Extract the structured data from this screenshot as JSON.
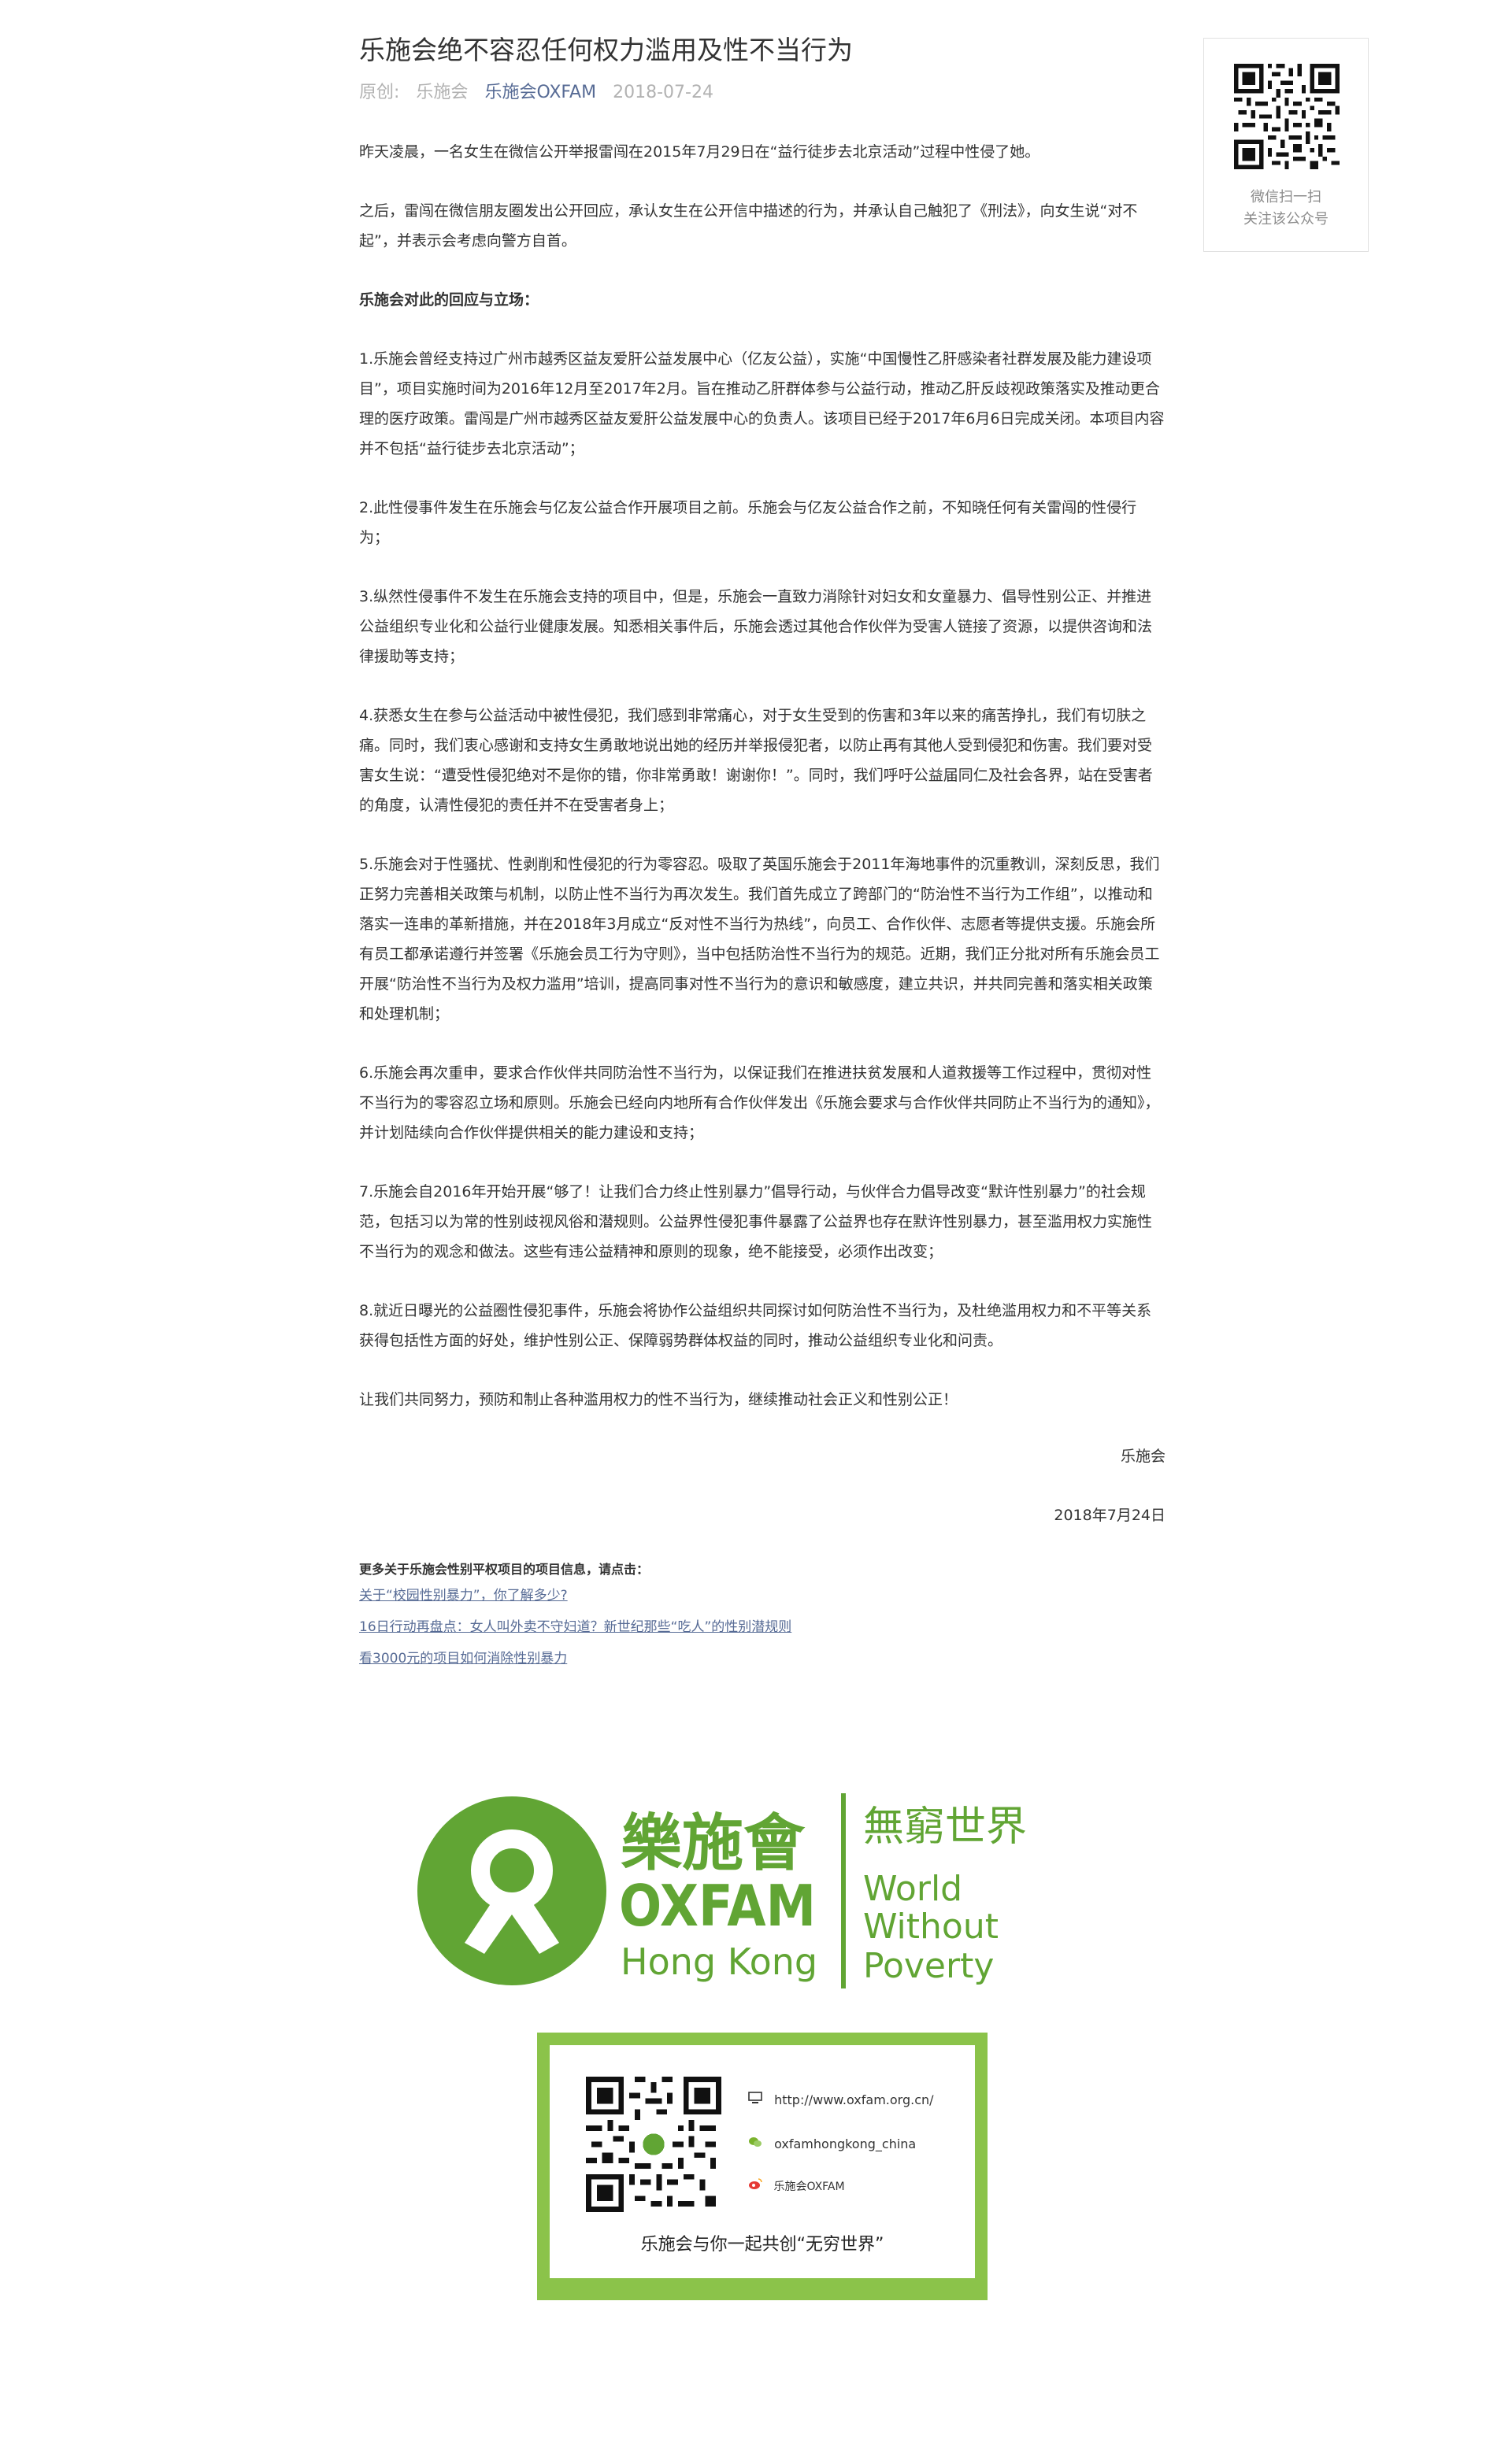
{
  "article": {
    "title": "乐施会绝不容忍任何权力滥用及性不当行为",
    "meta": {
      "original": "原创:",
      "author": "乐施会",
      "account": "乐施会OXFAM",
      "date": "2018-07-24"
    },
    "paragraphs": [
      "昨天凌晨，一名女生在微信公开举报雷闯在2015年7月29日在“益行徒步去北京活动”过程中性侵了她。",
      "之后，雷闯在微信朋友圈发出公开回应，承认女生在公开信中描述的行为，并承认自己触犯了《刑法》，向女生说“对不起”，并表示会考虑向警方自首。",
      "乐施会对此的回应与立场：",
      "1.乐施会曾经支持过广州市越秀区益友爱肝公益发展中心（亿友公益），实施“中国慢性乙肝感染者社群发展及能力建设项目”，项目实施时间为2016年12月至2017年2月。旨在推动乙肝群体参与公益行动，推动乙肝反歧视政策落实及推动更合理的医疗政策。雷闯是广州市越秀区益友爱肝公益发展中心的负责人。该项目已经于2017年6月6日完成关闭。本项目内容并不包括“益行徒步去北京活动”；",
      "2.此性侵事件发生在乐施会与亿友公益合作开展项目之前。乐施会与亿友公益合作之前，不知晓任何有关雷闯的性侵行为；",
      "3.纵然性侵事件不发生在乐施会支持的项目中，但是，乐施会一直致力消除针对妇女和女童暴力、倡导性别公正、并推进公益组织专业化和公益行业健康发展。知悉相关事件后，乐施会透过其他合作伙伴为受害人链接了资源，以提供咨询和法律援助等支持；",
      "4.获悉女生在参与公益活动中被性侵犯，我们感到非常痛心，对于女生受到的伤害和3年以来的痛苦挣扎，我们有切肤之痛。同时，我们衷心感谢和支持女生勇敢地说出她的经历并举报侵犯者，以防止再有其他人受到侵犯和伤害。我们要对受害女生说：“遭受性侵犯绝对不是你的错，你非常勇敢！谢谢你！”。同时，我们呼吁公益届同仁及社会各界，站在受害者的角度，认清性侵犯的责任并不在受害者身上；",
      "5.乐施会对于性骚扰、性剥削和性侵犯的行为零容忍。吸取了英国乐施会于2011年海地事件的沉重教训，深刻反思，我们正努力完善相关政策与机制，以防止性不当行为再次发生。我们首先成立了跨部门的“防治性不当行为工作组”，以推动和落实一连串的革新措施，并在2018年3月成立“反对性不当行为热线”，向员工、合作伙伴、志愿者等提供支援。乐施会所有员工都承诺遵行并签署《乐施会员工行为守则》，当中包括防治性不当行为的规范。近期，我们正分批对所有乐施会员工开展“防治性不当行为及权力滥用”培训，提高同事对性不当行为的意识和敏感度，建立共识，并共同完善和落实相关政策和处理机制；",
      "6.乐施会再次重申，要求合作伙伴共同防治性不当行为，以保证我们在推进扶贫发展和人道救援等工作过程中，贯彻对性不当行为的零容忍立场和原则。乐施会已经向内地所有合作伙伴发出《乐施会要求与合作伙伴共同防止不当行为的通知》，并计划陆续向合作伙伴提供相关的能力建设和支持；",
      "7.乐施会自2016年开始开展“够了！让我们合力终止性别暴力”倡导行动，与伙伴合力倡导改变“默许性别暴力”的社会规范，包括习以为常的性别歧视风俗和潜规则。公益界性侵犯事件暴露了公益界也存在默许性别暴力，甚至滥用权力实施性不当行为的观念和做法。这些有违公益精神和原则的现象，绝不能接受，必须作出改变；",
      "8.就近日曝光的公益圈性侵犯事件，乐施会将协作公益组织共同探讨如何防治性不当行为，及杜绝滥用权力和不平等关系获得包括性方面的好处，维护性别公正、保障弱势群体权益的同时，推动公益组织专业化和问责。",
      "让我们共同努力，预防和制止各种滥用权力的性不当行为，继续推动社会正义和性别公正！"
    ],
    "signature": "乐施会",
    "sign_date": "2018年7月24日",
    "more_title": "更多关于乐施会性别平权项目的项目信息，请点击：",
    "links": [
      "关于“校园性别暴力”，你了解多少?",
      "16日行动再盘点：女人叫外卖不守妇道？新世纪那些“吃人”的性别潜规则",
      "看3000元的项目如何消除性别暴力"
    ]
  },
  "qr_card": {
    "line1": "微信扫一扫",
    "line2": "关注该公众号"
  },
  "logo": {
    "chinese_name": "樂施會",
    "brand": "OXFAM",
    "region": "Hong Kong",
    "slogan_cn": "無窮世界",
    "slogan_en": [
      "World",
      "Without",
      "Poverty"
    ],
    "color": "#61a534"
  },
  "footer_card": {
    "website": "http://www.oxfam.org.cn/",
    "wechat": "oxfamhongkong_china",
    "weibo": "乐施会OXFAM",
    "slogan": "乐施会与你一起共创“无穷世界”",
    "border_color": "#8bc34a",
    "icons": [
      "computer-icon",
      "wechat-icon",
      "weibo-icon"
    ]
  }
}
